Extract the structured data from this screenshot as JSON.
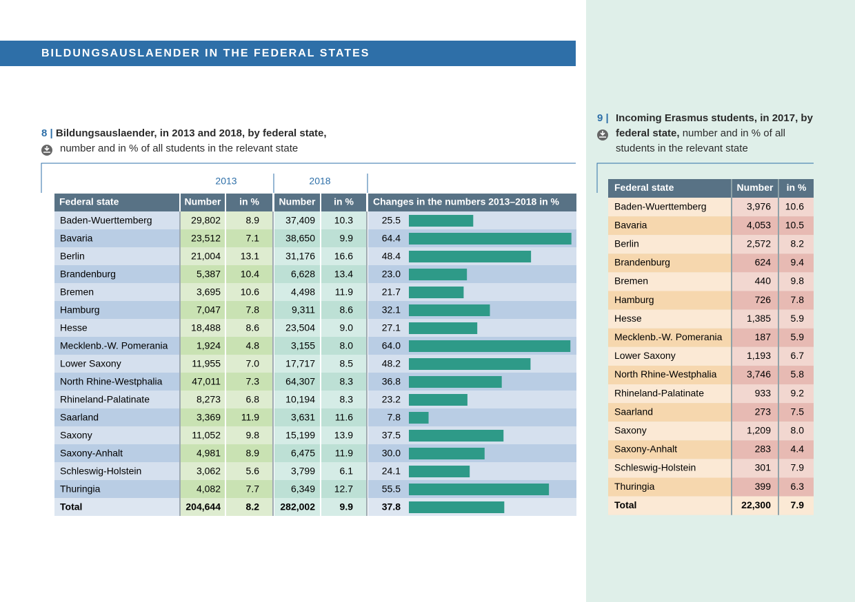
{
  "header": {
    "title": "BILDUNGSAUSLAENDER IN THE FEDERAL STATES"
  },
  "table8": {
    "number": "8",
    "title_bold": "Bildungsauslaender, in 2013 and 2018, by federal state,",
    "title_rest": "number and in % of all students in the relevant state",
    "group_headers": [
      "2013",
      "2018"
    ],
    "columns": [
      "Federal state",
      "Number",
      "in %",
      "Number",
      "in %",
      "Changes in the numbers 2013–2018 in %"
    ],
    "rows": [
      [
        "Baden-Wuerttemberg",
        "29,802",
        "8.9",
        "37,409",
        "10.3"
      ],
      [
        "Bavaria",
        "23,512",
        "7.1",
        "38,650",
        "9.9"
      ],
      [
        "Berlin",
        "21,004",
        "13.1",
        "31,176",
        "16.6"
      ],
      [
        "Brandenburg",
        "5,387",
        "10.4",
        "6,628",
        "13.4"
      ],
      [
        "Bremen",
        "3,695",
        "10.6",
        "4,498",
        "11.9"
      ],
      [
        "Hamburg",
        "7,047",
        "7.8",
        "9,311",
        "8.6"
      ],
      [
        "Hesse",
        "18,488",
        "8.6",
        "23,504",
        "9.0"
      ],
      [
        "Mecklenb.-W. Pomerania",
        "1,924",
        "4.8",
        "3,155",
        "8.0"
      ],
      [
        "Lower Saxony",
        "11,955",
        "7.0",
        "17,717",
        "8.5"
      ],
      [
        "North Rhine-Westphalia",
        "47,011",
        "7.3",
        "64,307",
        "8.3"
      ],
      [
        "Rhineland-Palatinate",
        "8,273",
        "6.8",
        "10,194",
        "8.3"
      ],
      [
        "Saarland",
        "3,369",
        "11.9",
        "3,631",
        "11.6"
      ],
      [
        "Saxony",
        "11,052",
        "9.8",
        "15,199",
        "13.9"
      ],
      [
        "Saxony-Anhalt",
        "4,981",
        "8.9",
        "6,475",
        "11.9"
      ],
      [
        "Schleswig-Holstein",
        "3,062",
        "5.6",
        "3,799",
        "6.1"
      ],
      [
        "Thuringia",
        "4,082",
        "7.7",
        "6,349",
        "12.7"
      ],
      [
        "Total",
        "204,644",
        "8.2",
        "282,002",
        "9.9"
      ]
    ],
    "changes": [
      25.5,
      64.4,
      48.4,
      23.0,
      21.7,
      32.1,
      27.1,
      64.0,
      48.2,
      36.8,
      23.2,
      7.8,
      37.5,
      30.0,
      24.1,
      55.5,
      37.8
    ],
    "change_labels": [
      "25.5",
      "64.4",
      "48.4",
      "23.0",
      "21.7",
      "32.1",
      "27.1",
      "64.0",
      "48.2",
      "36.8",
      "23.2",
      "7.8",
      "37.5",
      "30.0",
      "24.1",
      "55.5",
      "37.8"
    ]
  },
  "table9": {
    "number": "9",
    "title_bold": "Incoming Erasmus students, in 2017, by federal state,",
    "title_rest": "number and in % of all students in the relevant state",
    "columns": [
      "Federal state",
      "Number",
      "in %"
    ],
    "rows": [
      [
        "Baden-Wuerttemberg",
        "3,976",
        "10.6"
      ],
      [
        "Bavaria",
        "4,053",
        "10.5"
      ],
      [
        "Berlin",
        "2,572",
        "8.2"
      ],
      [
        "Brandenburg",
        "624",
        "9.4"
      ],
      [
        "Bremen",
        "440",
        "9.8"
      ],
      [
        "Hamburg",
        "726",
        "7.8"
      ],
      [
        "Hesse",
        "1,385",
        "5.9"
      ],
      [
        "Mecklenb.-W. Pomerania",
        "187",
        "5.9"
      ],
      [
        "Lower Saxony",
        "1,193",
        "6.7"
      ],
      [
        "North Rhine-Westphalia",
        "3,746",
        "5.8"
      ],
      [
        "Rhineland-Palatinate",
        "933",
        "9.2"
      ],
      [
        "Saarland",
        "273",
        "7.5"
      ],
      [
        "Saxony",
        "1,209",
        "8.0"
      ],
      [
        "Saxony-Anhalt",
        "283",
        "4.4"
      ],
      [
        "Schleswig-Holstein",
        "301",
        "7.9"
      ],
      [
        "Thuringia",
        "399",
        "6.3"
      ],
      [
        "Total",
        "22,300",
        "7.9"
      ]
    ]
  }
}
